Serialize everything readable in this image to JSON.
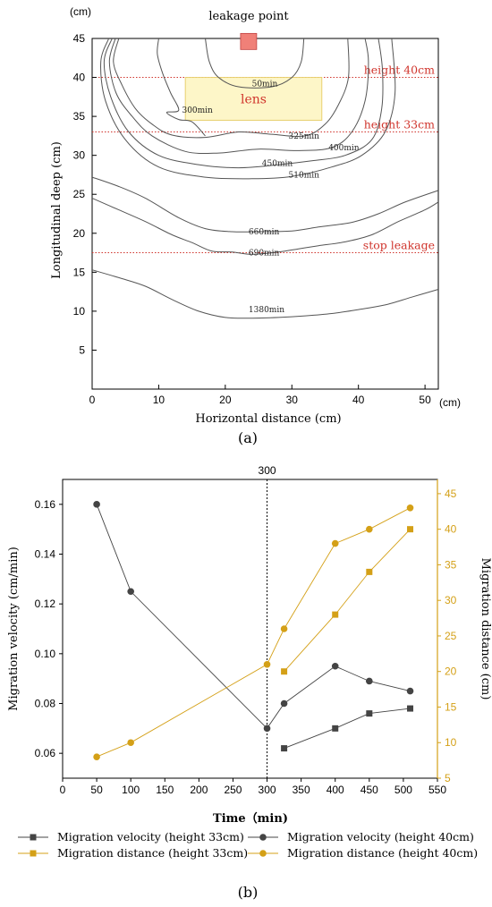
{
  "panel_a": {
    "label": "(a)",
    "leak_label": "leakage point",
    "lens_label": "lens",
    "annotations": [
      "height 40cm",
      "height 33cm",
      "stop leakage"
    ],
    "y_unit": "(cm)",
    "x_unit": "(cm)",
    "colors": {
      "leak": "#f08078",
      "lens_fill": "#fdf6c8",
      "lens_stroke": "#e8d070",
      "annotation": "#d0342c"
    }
  },
  "panel_b": {
    "label": "(b)",
    "marker_label": "300"
  },
  "chart_data": [
    {
      "type": "line",
      "chart_kind": "contour",
      "xlabel": "Horizontal distance (cm)",
      "ylabel": "Longitudinal deep (cm)",
      "xlim": [
        0,
        52
      ],
      "ylim": [
        0,
        45
      ],
      "xticks": [
        0,
        10,
        20,
        30,
        40,
        50
      ],
      "yticks": [
        5,
        10,
        15,
        20,
        25,
        30,
        35,
        40,
        45
      ],
      "leak_point": {
        "x": 23.5,
        "y": 44.5
      },
      "lens": {
        "x": [
          14,
          34.5
        ],
        "y": [
          34.5,
          40
        ]
      },
      "annotations": [
        {
          "text": "height 40cm",
          "y": 40
        },
        {
          "text": "height 33cm",
          "y": 33
        },
        {
          "text": "stop leakage",
          "y": 17.5
        }
      ],
      "series": [
        {
          "name": "50min",
          "label_at": [
            24,
            39.2
          ],
          "points": [
            [
              17,
              45
            ],
            [
              17.6,
              42
            ],
            [
              19,
              40
            ],
            [
              22,
              38.8
            ],
            [
              27,
              38.8
            ],
            [
              30,
              40
            ],
            [
              31.4,
              42
            ],
            [
              31.8,
              45
            ]
          ]
        },
        {
          "name": "300min",
          "label_at": [
            13.5,
            35.8
          ],
          "points": [
            [
              10,
              45
            ],
            [
              9.8,
              43
            ],
            [
              10.6,
              40.5
            ],
            [
              11.8,
              38
            ],
            [
              13,
              35.8
            ],
            [
              11.2,
              35.5
            ],
            [
              13,
              34.6
            ],
            [
              15,
              34.3
            ],
            [
              17,
              32.5
            ]
          ]
        },
        {
          "name": "325min",
          "label_at": [
            29.5,
            32.5
          ],
          "points": [
            [
              4,
              45
            ],
            [
              3.2,
              42
            ],
            [
              4.5,
              39
            ],
            [
              6.5,
              36
            ],
            [
              9,
              34
            ],
            [
              12,
              32.6
            ],
            [
              17,
              32.3
            ],
            [
              22,
              33
            ],
            [
              27,
              32.7
            ],
            [
              32,
              32.5
            ],
            [
              35,
              34
            ],
            [
              37,
              36.5
            ],
            [
              38.5,
              40
            ],
            [
              38.4,
              45
            ]
          ]
        },
        {
          "name": "400min",
          "label_at": [
            35.5,
            31
          ],
          "points": [
            [
              3.5,
              45
            ],
            [
              2.6,
              42
            ],
            [
              3.6,
              38
            ],
            [
              6,
              35
            ],
            [
              9,
              32.5
            ],
            [
              14,
              30.5
            ],
            [
              19,
              30.3
            ],
            [
              25,
              30.8
            ],
            [
              31,
              30.6
            ],
            [
              36,
              31
            ],
            [
              39,
              33
            ],
            [
              41,
              37
            ],
            [
              41.5,
              42
            ],
            [
              41,
              45
            ]
          ]
        },
        {
          "name": "450min",
          "label_at": [
            25.5,
            29
          ],
          "points": [
            [
              3,
              45
            ],
            [
              1.8,
              42
            ],
            [
              2.8,
              37.5
            ],
            [
              5.5,
              33
            ],
            [
              10,
              30
            ],
            [
              16,
              28.8
            ],
            [
              22,
              28.4
            ],
            [
              28,
              28.8
            ],
            [
              33,
              29.3
            ],
            [
              38,
              30
            ],
            [
              42,
              32
            ],
            [
              43.5,
              36
            ],
            [
              43.6,
              41
            ],
            [
              43,
              45
            ]
          ]
        },
        {
          "name": "510min",
          "label_at": [
            29.5,
            27.5
          ],
          "points": [
            [
              2.5,
              45
            ],
            [
              1.3,
              42
            ],
            [
              2,
              37
            ],
            [
              5,
              32
            ],
            [
              10,
              28.5
            ],
            [
              17,
              27.2
            ],
            [
              24,
              27
            ],
            [
              30,
              27.3
            ],
            [
              36,
              28.5
            ],
            [
              40.5,
              30
            ],
            [
              44,
              33
            ],
            [
              45.5,
              38
            ],
            [
              45,
              45
            ]
          ]
        },
        {
          "name": "660min",
          "label_at": [
            23.5,
            20.2
          ],
          "points": [
            [
              0,
              27.2
            ],
            [
              4,
              26
            ],
            [
              8,
              24.5
            ],
            [
              13,
              22
            ],
            [
              17,
              20.6
            ],
            [
              21,
              20.2
            ],
            [
              25,
              20.2
            ],
            [
              30,
              20.3
            ],
            [
              34,
              20.8
            ],
            [
              39,
              21.4
            ],
            [
              43,
              22.5
            ],
            [
              47,
              24
            ],
            [
              52,
              25.5
            ]
          ]
        },
        {
          "name": "690min",
          "label_at": [
            23.5,
            17.5
          ],
          "points": [
            [
              0,
              24.5
            ],
            [
              4,
              23
            ],
            [
              8,
              21.5
            ],
            [
              12,
              19.8
            ],
            [
              15,
              18.8
            ],
            [
              18,
              17.7
            ],
            [
              21,
              17.6
            ],
            [
              24,
              17.3
            ],
            [
              28,
              17.6
            ],
            [
              31,
              18
            ],
            [
              34,
              18.4
            ],
            [
              38,
              18.9
            ],
            [
              42,
              19.8
            ],
            [
              46,
              21.5
            ],
            [
              50,
              23
            ],
            [
              52,
              24
            ]
          ]
        },
        {
          "name": "1380min",
          "label_at": [
            23.5,
            10.2
          ],
          "points": [
            [
              0,
              15.3
            ],
            [
              4,
              14.3
            ],
            [
              8,
              13.2
            ],
            [
              12,
              11.5
            ],
            [
              16,
              10
            ],
            [
              20,
              9.2
            ],
            [
              24,
              9.1
            ],
            [
              28,
              9.2
            ],
            [
              32,
              9.4
            ],
            [
              36,
              9.7
            ],
            [
              40,
              10.2
            ],
            [
              44,
              10.8
            ],
            [
              48,
              11.8
            ],
            [
              52,
              12.8
            ]
          ]
        }
      ]
    },
    {
      "type": "line",
      "xlabel": "Time（min)",
      "ylabel": "Migration velocity (cm/min)",
      "y2label": "Migration distance (cm)",
      "xlim": [
        0,
        550
      ],
      "ylim": [
        0.05,
        0.17
      ],
      "y2lim": [
        5,
        47
      ],
      "xticks": [
        0,
        50,
        100,
        150,
        200,
        250,
        300,
        350,
        400,
        450,
        500,
        550
      ],
      "yticks": [
        0.06,
        0.08,
        0.1,
        0.12,
        0.14,
        0.16
      ],
      "y2ticks": [
        5,
        10,
        15,
        20,
        25,
        30,
        35,
        40,
        45
      ],
      "vline": 300,
      "legend": "bottom",
      "series": [
        {
          "name": "Migration velocity (height 33cm)",
          "axis": "left",
          "marker": "square",
          "color": "#444444",
          "x": [
            325,
            400,
            450,
            510
          ],
          "y": [
            0.062,
            0.07,
            0.076,
            0.078
          ]
        },
        {
          "name": "Migration velocity (height 40cm)",
          "axis": "left",
          "marker": "circle",
          "color": "#444444",
          "x": [
            50,
            100,
            300,
            325,
            400,
            450,
            510
          ],
          "y": [
            0.16,
            0.125,
            0.07,
            0.08,
            0.095,
            0.089,
            0.085
          ]
        },
        {
          "name": "Migration distance (height 33cm)",
          "axis": "right",
          "marker": "square",
          "color": "#d4a017",
          "x": [
            325,
            400,
            450,
            510
          ],
          "y": [
            20,
            28,
            34,
            40
          ]
        },
        {
          "name": "Migration distance (height 40cm)",
          "axis": "right",
          "marker": "circle",
          "color": "#d4a017",
          "x": [
            50,
            100,
            300,
            325,
            400,
            450,
            510
          ],
          "y": [
            8,
            10,
            21,
            26,
            38,
            40,
            43
          ]
        }
      ]
    }
  ]
}
